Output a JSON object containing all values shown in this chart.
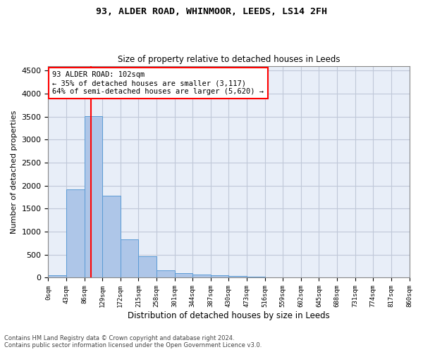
{
  "title": "93, ALDER ROAD, WHINMOOR, LEEDS, LS14 2FH",
  "subtitle": "Size of property relative to detached houses in Leeds",
  "xlabel": "Distribution of detached houses by size in Leeds",
  "ylabel": "Number of detached properties",
  "annotation_line1": "93 ALDER ROAD: 102sqm",
  "annotation_line2": "← 35% of detached houses are smaller (3,117)",
  "annotation_line3": "64% of semi-detached houses are larger (5,620) →",
  "property_size_sqm": 102,
  "footer_line1": "Contains HM Land Registry data © Crown copyright and database right 2024.",
  "footer_line2": "Contains public sector information licensed under the Open Government Licence v3.0.",
  "bar_color": "#aec6e8",
  "bar_edge_color": "#5b9bd5",
  "vline_color": "red",
  "annotation_box_edgecolor": "red",
  "background_color": "#e8eef8",
  "grid_color": "#c0c8d8",
  "bin_edges": [
    0,
    43,
    86,
    129,
    172,
    215,
    258,
    301,
    344,
    387,
    430,
    473,
    516,
    559,
    602,
    645,
    688,
    731,
    774,
    817,
    860
  ],
  "bin_labels": [
    "0sqm",
    "43sqm",
    "86sqm",
    "129sqm",
    "172sqm",
    "215sqm",
    "258sqm",
    "301sqm",
    "344sqm",
    "387sqm",
    "430sqm",
    "473sqm",
    "516sqm",
    "559sqm",
    "602sqm",
    "645sqm",
    "688sqm",
    "731sqm",
    "774sqm",
    "817sqm",
    "860sqm"
  ],
  "bar_heights": [
    50,
    1920,
    3510,
    1780,
    840,
    460,
    160,
    100,
    70,
    55,
    45,
    30,
    0,
    0,
    0,
    0,
    0,
    0,
    0,
    0
  ],
  "ylim": [
    0,
    4600
  ],
  "yticks": [
    0,
    500,
    1000,
    1500,
    2000,
    2500,
    3000,
    3500,
    4000,
    4500
  ]
}
